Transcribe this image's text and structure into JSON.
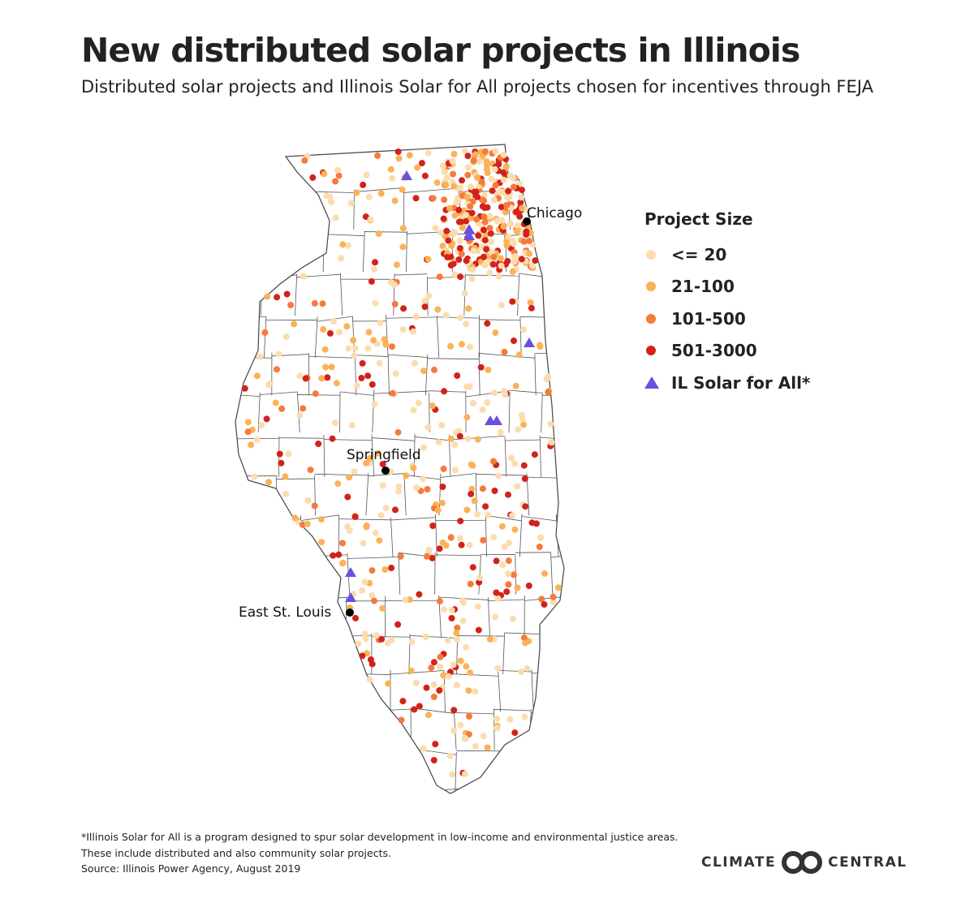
{
  "header": {
    "title": "New distributed solar projects in Illinois",
    "subtitle": "Distributed solar projects and Illinois Solar for All projects chosen for incentives through FEJA"
  },
  "map": {
    "cities": [
      {
        "name": "Chicago"
      },
      {
        "name": "Springfield"
      },
      {
        "name": "East St. Louis"
      }
    ],
    "colors": {
      "le20": "#fbdcae",
      "c21_100": "#fbb257",
      "c101_500": "#f57a3c",
      "c501_3000": "#d1231b",
      "solar_for_all": "#6a4fe0",
      "county_line": "#555555"
    }
  },
  "legend": {
    "title": "Project Size",
    "items": [
      {
        "label": "<= 20",
        "color": "#fbdcae",
        "shape": "circle"
      },
      {
        "label": "21-100",
        "color": "#fbb257",
        "shape": "circle"
      },
      {
        "label": "101-500",
        "color": "#f57a3c",
        "shape": "circle"
      },
      {
        "label": "501-3000",
        "color": "#d1231b",
        "shape": "circle"
      },
      {
        "label": "IL Solar for All*",
        "color": "#6a4fe0",
        "shape": "triangle"
      }
    ]
  },
  "footer": {
    "notes": [
      "*Illinois Solar for All is a program designed to spur solar development in low-income and environmental justice areas.",
      "These include distributed and also community solar projects.",
      "Source: Illinois Power Agency, August 2019"
    ],
    "logo_left": "CLIMATE",
    "logo_right": "CENTRAL"
  }
}
